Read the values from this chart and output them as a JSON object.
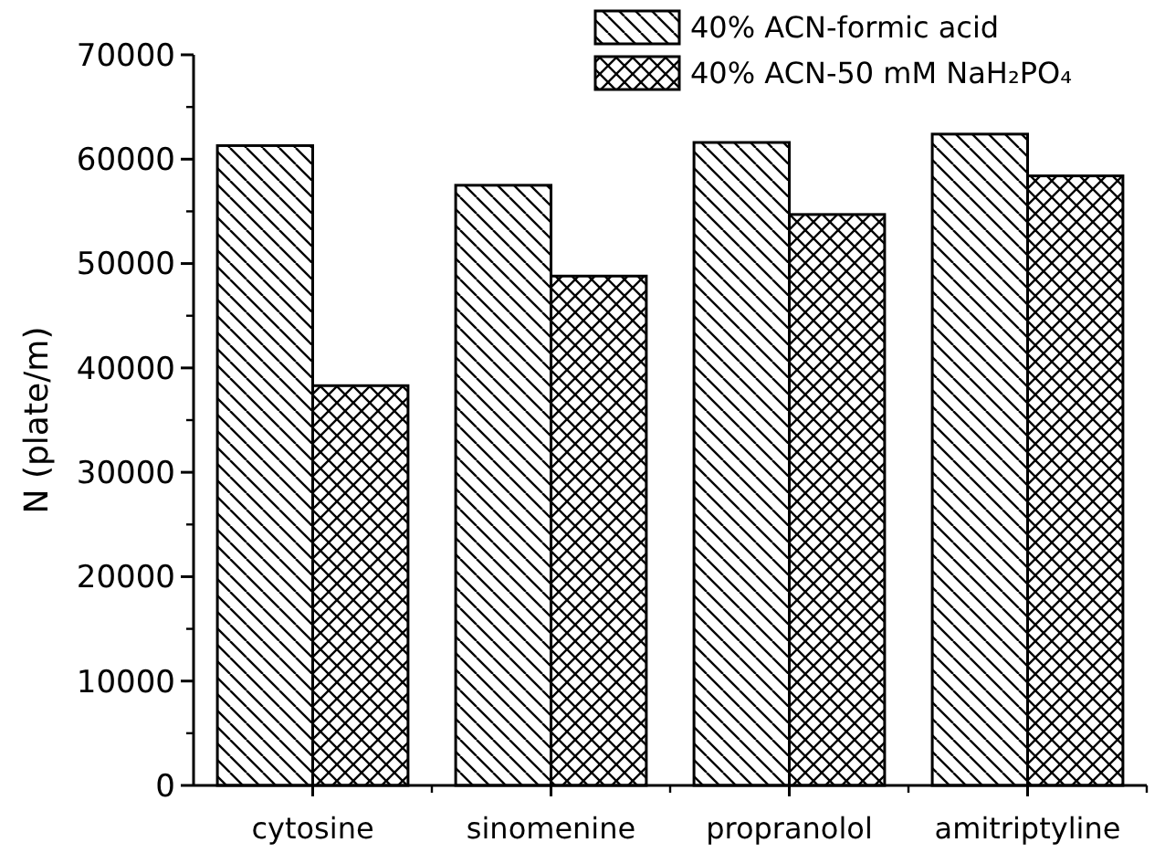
{
  "chart_data": {
    "type": "bar",
    "ylabel": "N (plate/m)",
    "categories": [
      "cytosine",
      "sinomenine",
      "propranolol",
      "amitriptyline"
    ],
    "series": [
      {
        "name": "40% ACN-formic acid",
        "color": "#000000",
        "values": [
          61300,
          57500,
          61600,
          62400
        ]
      },
      {
        "name": "40% ACN-50 mM NaH₂PO₄",
        "color": "#000000",
        "values": [
          38300,
          48800,
          54700,
          58400
        ]
      }
    ],
    "ylim": [
      0,
      70000
    ],
    "yticks": [
      0,
      10000,
      20000,
      30000,
      40000,
      50000,
      60000,
      70000
    ],
    "grid": false,
    "legend": "top right"
  }
}
